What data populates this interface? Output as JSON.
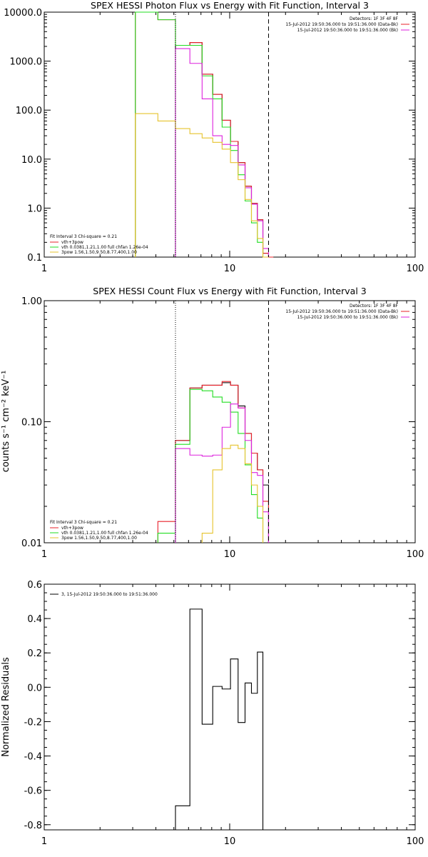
{
  "colors": {
    "axes": "#000000",
    "series_red": "#e8202a",
    "series_green": "#22dd22",
    "series_magenta": "#dd22dd",
    "series_yellow": "#e6c32c",
    "background": "#ffffff"
  },
  "chart_data": [
    {
      "type": "line",
      "title": "SPEX HESSI Photon Flux vs Energy with Fit Function, Interval 3",
      "xlabel": "",
      "ylabel": "",
      "xscale": "log",
      "yscale": "log",
      "xlim": [
        1,
        100
      ],
      "ylim": [
        0.1,
        10000
      ],
      "xticks": [
        1,
        10,
        100
      ],
      "xtick_labels": [
        "1",
        "10",
        "100"
      ],
      "yticks": [
        0.1,
        1,
        10,
        100,
        1000,
        10000
      ],
      "ytick_labels": [
        "0.1",
        "1.0",
        "10.0",
        "100.0",
        "1000.0",
        "10000.0"
      ],
      "grid": false,
      "vlines": [
        {
          "x": 5.1,
          "style": "dotted"
        },
        {
          "x": 16.2,
          "style": "dashed"
        }
      ],
      "legend_top_right": [
        "Detectors: 1F 3F 4F 8F",
        "15-Jul-2012 19:50:36.000 to 19:51:36.000 (Data-Bk)",
        "15-Jul-2012 19:50:36.000 to 19:51:36.000 (Bk)"
      ],
      "legend_bottom_left": [
        "Fit Interval  3    Chi-square = 0.21",
        "vth+3pow",
        "vth 0.0381,1.21,1.00  full chfan 1.26e-04",
        "3pow 1.56,1.50,9.50,8.77,400,1.00"
      ],
      "series": [
        {
          "color": "black",
          "edges": [
            5.1,
            6.1,
            7.1,
            8.1,
            9.1,
            10.1,
            11.1,
            12.1,
            13.1,
            14.1,
            15.1,
            16.2
          ],
          "values": [
            2100,
            2400,
            540,
            210,
            62,
            23,
            8.5,
            2.8,
            1.25,
            0.58,
            0.12
          ]
        },
        {
          "color": "red",
          "edges": [
            3.1,
            4.1,
            5.1,
            6.1,
            7.1,
            8.1,
            9.1,
            10.1,
            11.1,
            12.1,
            13.1,
            14.1,
            15.1,
            16.2,
            17.2
          ],
          "values": [
            10000,
            7000,
            2100,
            2400,
            540,
            210,
            62,
            23,
            8.5,
            2.8,
            1.25,
            0.58,
            0.12,
            0.1
          ]
        },
        {
          "color": "green",
          "edges": [
            3.1,
            4.1,
            5.1,
            6.1,
            7.1,
            8.1,
            9.1,
            10.1,
            11.1,
            12.1,
            13.1,
            14.1,
            15.1,
            16.2
          ],
          "values": [
            10000,
            7000,
            2100,
            2100,
            500,
            170,
            45,
            15,
            4.8,
            1.4,
            0.5,
            0.2,
            0.1
          ]
        },
        {
          "color": "magenta",
          "edges": [
            5.1,
            6.1,
            7.1,
            8.1,
            9.1,
            10.1,
            11.1,
            12.1,
            13.1,
            14.1,
            15.1,
            16.2
          ],
          "values": [
            1800,
            900,
            170,
            30,
            20,
            19,
            7.6,
            2.6,
            1.2,
            0.55,
            0.15
          ]
        },
        {
          "color": "yellow",
          "edges": [
            3.1,
            4.1,
            5.1,
            6.1,
            7.1,
            8.1,
            9.1,
            10.1,
            11.1,
            12.1,
            13.1,
            14.1,
            15.1,
            16.2
          ],
          "values": [
            85,
            60,
            42,
            33,
            27,
            22,
            16,
            8.5,
            3.8,
            1.5,
            0.55,
            0.24,
            0.1
          ]
        }
      ]
    },
    {
      "type": "line",
      "title": "SPEX HESSI Count Flux vs Energy with Fit Function, Interval 3",
      "xlabel": "",
      "ylabel": "counts s⁻¹ cm⁻² keV⁻¹",
      "xscale": "log",
      "yscale": "log",
      "xlim": [
        1,
        100
      ],
      "ylim": [
        0.01,
        1
      ],
      "xticks": [
        1,
        10,
        100
      ],
      "xtick_labels": [
        "1",
        "10",
        "100"
      ],
      "yticks": [
        0.01,
        0.1,
        1
      ],
      "ytick_labels": [
        "0.01",
        "0.10",
        "1.00"
      ],
      "grid": false,
      "vlines": [
        {
          "x": 5.1,
          "style": "dotted"
        },
        {
          "x": 16.2,
          "style": "dashed"
        }
      ],
      "legend_top_right": [
        "Detectors: 1F 3F 4F 8F",
        "15-Jul-2012 19:50:36.000 to 19:51:36.000 (Data-Bk)",
        "15-Jul-2012 19:50:36.000 to 19:51:36.000 (Bk)"
      ],
      "legend_bottom_left": [
        "Fit Interval  3    Chi-square = 0.21",
        "vth+3pow",
        "vth 0.0381,1.21,1.00  full chfan 1.26e-04",
        "3pow 1.56,1.50,9.50,8.77,400,1.00"
      ],
      "series": [
        {
          "color": "black",
          "edges": [
            5.1,
            6.1,
            7.1,
            8.1,
            9.1,
            10.1,
            11.1,
            12.1,
            13.1,
            14.1,
            15.1,
            16.2
          ],
          "values": [
            0.07,
            0.19,
            0.2,
            0.2,
            0.21,
            0.2,
            0.135,
            0.08,
            0.055,
            0.04,
            0.03
          ]
        },
        {
          "color": "red",
          "edges": [
            4.1,
            5.1,
            6.1,
            7.1,
            8.1,
            9.1,
            10.1,
            11.1,
            12.1,
            13.1,
            14.1,
            15.1,
            16.2
          ],
          "values": [
            0.015,
            0.07,
            0.19,
            0.2,
            0.2,
            0.215,
            0.2,
            0.13,
            0.08,
            0.055,
            0.04,
            0.022
          ]
        },
        {
          "color": "green",
          "edges": [
            4.1,
            5.1,
            6.1,
            7.1,
            8.1,
            9.1,
            10.1,
            11.1,
            12.1,
            13.1,
            14.1,
            15.1
          ],
          "values": [
            0.012,
            0.065,
            0.185,
            0.18,
            0.16,
            0.145,
            0.12,
            0.08,
            0.044,
            0.025,
            0.016
          ]
        },
        {
          "color": "magenta",
          "edges": [
            5.1,
            6.1,
            7.1,
            8.1,
            9.1,
            10.1,
            11.1,
            12.1,
            13.1,
            14.1,
            15.1,
            16.2
          ],
          "values": [
            0.06,
            0.053,
            0.052,
            0.053,
            0.09,
            0.14,
            0.13,
            0.07,
            0.038,
            0.036,
            0.018
          ]
        },
        {
          "color": "yellow",
          "edges": [
            7.1,
            8.1,
            9.1,
            10.1,
            11.1,
            12.1,
            13.1,
            14.1,
            15.1
          ],
          "values": [
            0.012,
            0.04,
            0.06,
            0.064,
            0.06,
            0.045,
            0.03,
            0.02
          ]
        }
      ]
    },
    {
      "type": "line",
      "title": "",
      "xlabel": "",
      "ylabel": "Normalized Residuals",
      "xscale": "log",
      "yscale": "linear",
      "xlim": [
        1,
        100
      ],
      "ylim": [
        -0.83,
        0.6
      ],
      "xticks": [
        1,
        10,
        100
      ],
      "xtick_labels": [
        "1",
        "10",
        "100"
      ],
      "yticks": [
        -0.8,
        -0.6,
        -0.4,
        -0.2,
        0.0,
        0.2,
        0.4,
        0.6
      ],
      "ytick_labels": [
        "-0.8",
        "-0.6",
        "-0.4",
        "-0.2",
        "0.0",
        "0.2",
        "0.4",
        "0.6"
      ],
      "grid": false,
      "legend_top_left": [
        "3, 15-Jul-2012 19:50:36.000 to 19:51:36.000"
      ],
      "series": [
        {
          "color": "black",
          "edges": [
            5.1,
            6.1,
            7.1,
            8.1,
            9.1,
            10.1,
            11.1,
            12.1,
            13.1,
            14.1,
            15.1,
            16.2
          ],
          "values": [
            -0.69,
            0.455,
            -0.215,
            0.005,
            -0.01,
            0.165,
            -0.205,
            0.025,
            -0.035,
            0.205,
            -0.83
          ]
        }
      ]
    }
  ]
}
